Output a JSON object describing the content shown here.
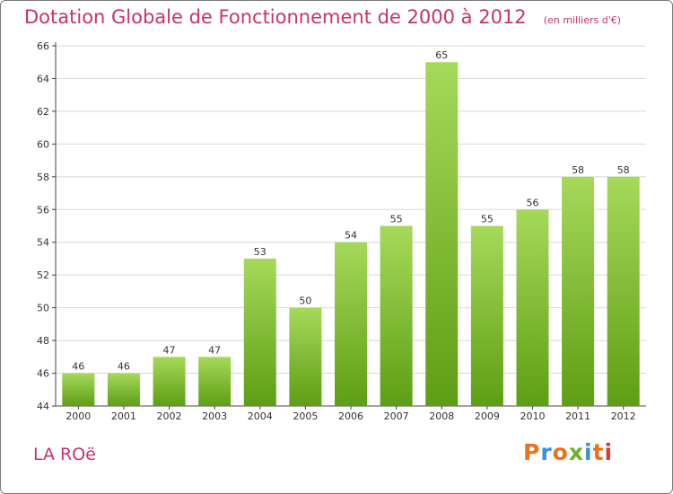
{
  "header": {
    "title": "Dotation Globale de Fonctionnement de 2000 à 2012",
    "unit": "(en milliers d'€)"
  },
  "footer": {
    "commune": "LA ROë",
    "logo": "Proxiti",
    "logo_colors": [
      "#e8731f",
      "#3a8fd6",
      "#e8731f",
      "#6ab02c",
      "#3a8fd6",
      "#e8731f",
      "#d63a3a"
    ]
  },
  "colors": {
    "bar_top": "#a6d95a",
    "bar_bottom": "#5e9e14",
    "grid": "#d8d8d8",
    "axis": "#444444",
    "text": "#333333"
  },
  "chart_data": {
    "type": "bar",
    "categories": [
      "2000",
      "2001",
      "2002",
      "2003",
      "2004",
      "2005",
      "2006",
      "2007",
      "2008",
      "2009",
      "2010",
      "2011",
      "2012"
    ],
    "values": [
      46,
      46,
      47,
      47,
      53,
      50,
      54,
      55,
      65,
      55,
      56,
      58,
      58
    ],
    "ylim": [
      44,
      66
    ],
    "yticks": [
      44,
      46,
      48,
      50,
      52,
      54,
      56,
      58,
      60,
      62,
      64,
      66
    ],
    "grid": true
  }
}
